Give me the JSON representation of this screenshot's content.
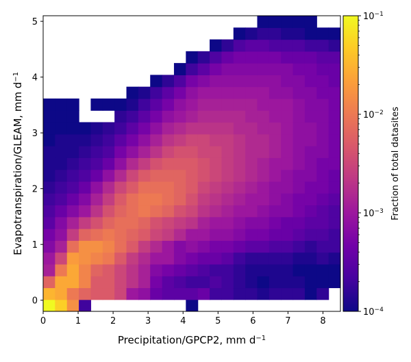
{
  "chart_data": {
    "type": "heatmap",
    "x_label_base": "Precipitation/GPCP2,  mm d",
    "x_label_exp": "−1",
    "y_label_base": "Evapotranspiration/GLEAM,  mm d",
    "y_label_exp": "−1",
    "colorbar_label": "Fraction of total datasites",
    "x_range": [
      0,
      8.5
    ],
    "y_range": [
      -0.2,
      5.1
    ],
    "x_ticks": [
      0,
      1,
      2,
      3,
      4,
      5,
      6,
      7,
      8
    ],
    "y_ticks": [
      0,
      1,
      2,
      3,
      4,
      5
    ],
    "colorbar_scale": "log",
    "colorbar_range": [
      0.0001,
      0.1
    ],
    "colorbar_ticks": [
      {
        "value": 0.0001,
        "base": "10",
        "exp": "−4"
      },
      {
        "value": 0.001,
        "base": "10",
        "exp": "−3"
      },
      {
        "value": 0.01,
        "base": "10",
        "exp": "−2"
      },
      {
        "value": 0.1,
        "base": "10",
        "exp": "−1"
      }
    ],
    "colormap": "plasma",
    "colormap_stops": [
      "#0d0887",
      "#46039f",
      "#7201a8",
      "#9c179e",
      "#bd3786",
      "#d8576b",
      "#ed7953",
      "#fb9f3a",
      "#fdca26",
      "#f0f921"
    ],
    "bins": {
      "x_start": 0.0,
      "x_step": 0.34,
      "x_count": 25,
      "y_start": -0.2,
      "y_step": 0.212,
      "y_count": 25
    },
    "grid_log10": [
      [
        -1.0,
        -1.3,
        -1.8,
        -3.7,
        null,
        null,
        null,
        null,
        null,
        null,
        null,
        null,
        -4.0,
        null,
        null,
        null,
        null,
        null,
        null,
        null,
        null,
        null,
        null,
        null,
        null
      ],
      [
        -1.5,
        -1.6,
        -2.0,
        -2.2,
        -2.3,
        -2.3,
        -2.5,
        -3.0,
        -3.1,
        -3.4,
        -3.5,
        -3.5,
        -3.5,
        -3.4,
        -3.7,
        -3.7,
        -3.8,
        -3.8,
        -3.9,
        -3.8,
        -3.8,
        -3.8,
        -4.0,
        -3.8,
        null
      ],
      [
        -2.2,
        -1.6,
        -1.6,
        -1.9,
        -2.3,
        -2.3,
        -2.5,
        -2.7,
        -2.9,
        -3.3,
        -3.5,
        -3.6,
        -3.7,
        -3.7,
        -3.6,
        -3.7,
        -3.8,
        -3.9,
        -4.0,
        -3.9,
        -3.9,
        -3.9,
        -4.0,
        -4.0,
        -4.0
      ],
      [
        -2.9,
        -2.0,
        -1.6,
        -1.9,
        -2.2,
        -2.3,
        -2.5,
        -2.7,
        -2.9,
        -3.2,
        -3.3,
        -3.4,
        -3.5,
        -3.6,
        -3.7,
        -3.7,
        -3.8,
        -3.9,
        -3.9,
        -3.9,
        -3.9,
        -4.0,
        -4.0,
        -4.0,
        -4.0
      ],
      [
        -3.0,
        -2.5,
        -1.7,
        -1.8,
        -1.9,
        -2.0,
        -2.3,
        -2.6,
        -2.8,
        -3.0,
        -3.0,
        -3.2,
        -3.3,
        -3.4,
        -3.4,
        -3.5,
        -3.7,
        -3.8,
        -3.8,
        -3.8,
        -3.8,
        -3.9,
        -3.9,
        -3.8,
        -3.9
      ],
      [
        -3.2,
        -2.9,
        -2.1,
        -1.8,
        -1.8,
        -1.9,
        -2.1,
        -2.3,
        -2.6,
        -2.8,
        -3.0,
        -3.2,
        -3.1,
        -3.2,
        -3.3,
        -3.3,
        -3.4,
        -3.5,
        -3.5,
        -3.6,
        -3.6,
        -3.7,
        -3.8,
        -3.7,
        -3.7
      ],
      [
        -3.3,
        -3.1,
        -2.6,
        -2.2,
        -2.1,
        -2.0,
        -2.1,
        -2.2,
        -2.3,
        -2.5,
        -2.6,
        -2.8,
        -3.0,
        -3.0,
        -3.1,
        -3.1,
        -3.2,
        -3.3,
        -3.3,
        -3.4,
        -3.4,
        -3.5,
        -3.6,
        -3.6,
        -3.7
      ],
      [
        -3.5,
        -3.2,
        -2.9,
        -2.6,
        -2.4,
        -2.2,
        -2.1,
        -2.1,
        -2.2,
        -2.4,
        -2.5,
        -2.6,
        -2.7,
        -2.9,
        -3.0,
        -3.0,
        -3.1,
        -3.2,
        -3.2,
        -3.3,
        -3.4,
        -3.4,
        -3.5,
        -3.5,
        -3.6
      ],
      [
        -3.6,
        -3.4,
        -3.2,
        -3.0,
        -2.7,
        -2.4,
        -2.2,
        -2.1,
        -2.0,
        -2.1,
        -2.2,
        -2.4,
        -2.5,
        -2.7,
        -2.8,
        -2.9,
        -3.0,
        -3.0,
        -3.1,
        -3.2,
        -3.2,
        -3.3,
        -3.4,
        -3.5,
        -3.6
      ],
      [
        -3.7,
        -3.6,
        -3.4,
        -3.2,
        -2.9,
        -2.6,
        -2.3,
        -2.1,
        -2.0,
        -2.0,
        -2.1,
        -2.2,
        -2.4,
        -2.6,
        -2.7,
        -2.8,
        -2.9,
        -3.0,
        -3.0,
        -3.1,
        -3.2,
        -3.3,
        -3.3,
        -3.4,
        -3.5
      ],
      [
        -3.8,
        -3.7,
        -3.6,
        -3.4,
        -3.1,
        -2.8,
        -2.5,
        -2.3,
        -2.1,
        -2.1,
        -2.1,
        -2.2,
        -2.3,
        -2.5,
        -2.6,
        -2.7,
        -2.8,
        -2.9,
        -3.0,
        -3.1,
        -3.1,
        -3.2,
        -3.3,
        -3.3,
        -3.4
      ],
      [
        -3.9,
        -3.8,
        -3.7,
        -3.6,
        -3.4,
        -3.1,
        -2.8,
        -2.5,
        -2.3,
        -2.2,
        -2.2,
        -2.2,
        -2.3,
        -2.4,
        -2.5,
        -2.6,
        -2.7,
        -2.8,
        -2.9,
        -3.0,
        -3.1,
        -3.2,
        -3.2,
        -3.3,
        -3.4
      ],
      [
        -3.9,
        -3.9,
        -3.8,
        -3.7,
        -3.6,
        -3.4,
        -3.1,
        -2.8,
        -2.6,
        -2.4,
        -2.3,
        -2.3,
        -2.3,
        -2.4,
        -2.5,
        -2.6,
        -2.7,
        -2.8,
        -2.9,
        -3.0,
        -3.0,
        -3.1,
        -3.2,
        -3.3,
        -3.3
      ],
      [
        -3.9,
        -3.9,
        -3.9,
        -3.8,
        -3.7,
        -3.6,
        -3.3,
        -3.1,
        -2.9,
        -2.7,
        -2.5,
        -2.4,
        -2.4,
        -2.5,
        -2.5,
        -2.6,
        -2.7,
        -2.8,
        -2.8,
        -2.9,
        -3.0,
        -3.1,
        -3.2,
        -3.2,
        -3.3
      ],
      [
        -4.0,
        -3.9,
        -3.9,
        -3.9,
        -3.8,
        -3.7,
        -3.5,
        -3.3,
        -3.1,
        -2.9,
        -2.7,
        -2.6,
        -2.5,
        -2.5,
        -2.6,
        -2.6,
        -2.7,
        -2.8,
        -2.8,
        -2.9,
        -3.0,
        -3.1,
        -3.1,
        -3.2,
        -3.3
      ],
      [
        -4.0,
        -4.0,
        -4.0,
        -4.0,
        -3.9,
        -3.8,
        -3.7,
        -3.5,
        -3.3,
        -3.1,
        -2.9,
        -2.8,
        -2.7,
        -2.7,
        -2.7,
        -2.7,
        -2.8,
        -2.8,
        -2.9,
        -2.9,
        -3.0,
        -3.1,
        -3.1,
        -3.2,
        -3.3
      ],
      [
        -4.0,
        -4.0,
        -4.0,
        null,
        null,
        null,
        -3.8,
        -3.7,
        -3.5,
        -3.3,
        -3.1,
        -3.0,
        -2.9,
        -2.8,
        -2.8,
        -2.8,
        -2.8,
        -2.9,
        -2.9,
        -3.0,
        -3.0,
        -3.1,
        -3.2,
        -3.2,
        -3.3
      ],
      [
        -4.0,
        -4.0,
        -4.0,
        null,
        -4.0,
        -4.0,
        -4.0,
        -3.9,
        -3.7,
        -3.5,
        -3.3,
        -3.1,
        -3.0,
        -2.9,
        -2.9,
        -2.9,
        -2.9,
        -2.9,
        -3.0,
        -3.0,
        -3.0,
        -3.1,
        -3.2,
        -3.2,
        -3.3
      ],
      [
        null,
        null,
        null,
        null,
        null,
        null,
        null,
        -4.0,
        -3.9,
        -3.7,
        -3.5,
        -3.3,
        -3.1,
        -3.0,
        -3.0,
        -3.0,
        -3.0,
        -3.0,
        -3.0,
        -3.1,
        -3.1,
        -3.2,
        -3.2,
        -3.3,
        -3.3
      ],
      [
        null,
        null,
        null,
        null,
        null,
        null,
        null,
        null,
        null,
        -4.0,
        -3.8,
        -3.6,
        -3.3,
        -3.2,
        -3.1,
        -3.1,
        -3.1,
        -3.1,
        -3.1,
        -3.1,
        -3.2,
        -3.2,
        -3.3,
        -3.3,
        -3.4
      ],
      [
        null,
        null,
        null,
        null,
        null,
        null,
        null,
        null,
        null,
        null,
        null,
        -4.0,
        -3.7,
        -3.5,
        -3.3,
        -3.2,
        -3.2,
        -3.2,
        -3.2,
        -3.2,
        -3.2,
        -3.3,
        -3.3,
        -3.4,
        -3.4
      ],
      [
        null,
        null,
        null,
        null,
        null,
        null,
        null,
        null,
        null,
        null,
        null,
        null,
        -4.0,
        -3.8,
        -3.6,
        -3.4,
        -3.3,
        -3.3,
        -3.3,
        -3.3,
        -3.4,
        -3.4,
        -3.4,
        -3.5,
        -3.5
      ],
      [
        null,
        null,
        null,
        null,
        null,
        null,
        null,
        null,
        null,
        null,
        null,
        null,
        null,
        null,
        -4.0,
        -3.8,
        -3.6,
        -3.5,
        -3.5,
        -3.6,
        -3.6,
        -3.6,
        -3.7,
        -3.7,
        -3.8
      ],
      [
        null,
        null,
        null,
        null,
        null,
        null,
        null,
        null,
        null,
        null,
        null,
        null,
        null,
        null,
        null,
        null,
        -4.0,
        -3.9,
        -3.8,
        -3.8,
        -3.9,
        -3.9,
        -4.0,
        -4.0,
        -4.0
      ],
      [
        null,
        null,
        null,
        null,
        null,
        null,
        null,
        null,
        null,
        null,
        null,
        null,
        null,
        null,
        null,
        null,
        null,
        null,
        -4.0,
        -4.0,
        -4.0,
        -4.0,
        -4.0,
        null,
        null
      ]
    ]
  }
}
